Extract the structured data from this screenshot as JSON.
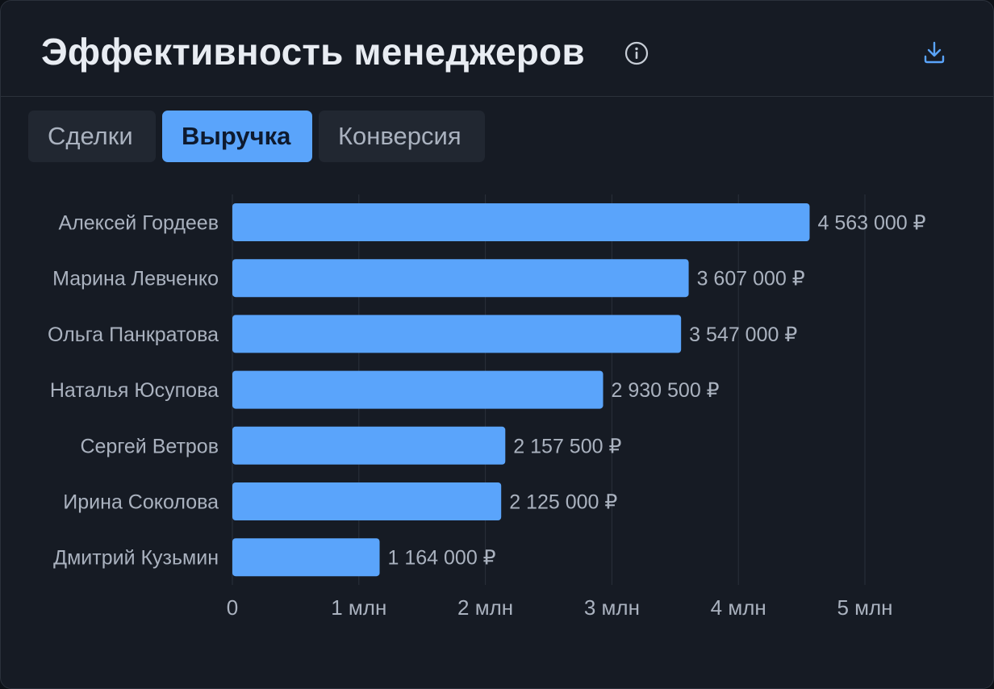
{
  "header": {
    "title": "Эффективность менеджеров",
    "info_icon": "info-circle-icon",
    "download_icon": "download-icon"
  },
  "tabs": [
    {
      "label": "Сделки",
      "active": false
    },
    {
      "label": "Выручка",
      "active": true
    },
    {
      "label": "Конверсия",
      "active": false
    }
  ],
  "colors": {
    "bar": "#5aa4fb",
    "background": "#161b24",
    "text": "#aab2bf",
    "grid": "#2b313b"
  },
  "chart_data": {
    "type": "bar",
    "orientation": "horizontal",
    "categories": [
      "Алексей Гордеев",
      "Марина Левченко",
      "Ольга Панкратова",
      "Наталья Юсупова",
      "Сергей Ветров",
      "Ирина Соколова",
      "Дмитрий Кузьмин"
    ],
    "values": [
      4563000,
      3607000,
      3547000,
      2930500,
      2157500,
      2125000,
      1164000
    ],
    "value_labels": [
      "4 563 000 ₽",
      "3 607 000 ₽",
      "3 547 000 ₽",
      "2 930 500 ₽",
      "2 157 500 ₽",
      "2 125 000 ₽",
      "1 164 000 ₽"
    ],
    "x_ticks": [
      0,
      1000000,
      2000000,
      3000000,
      4000000,
      5000000
    ],
    "x_tick_labels": [
      "0",
      "1 млн",
      "2 млн",
      "3 млн",
      "4 млн",
      "5 млн"
    ],
    "xlim": [
      0,
      5000000
    ],
    "grid": "vertical",
    "legend": "none"
  }
}
